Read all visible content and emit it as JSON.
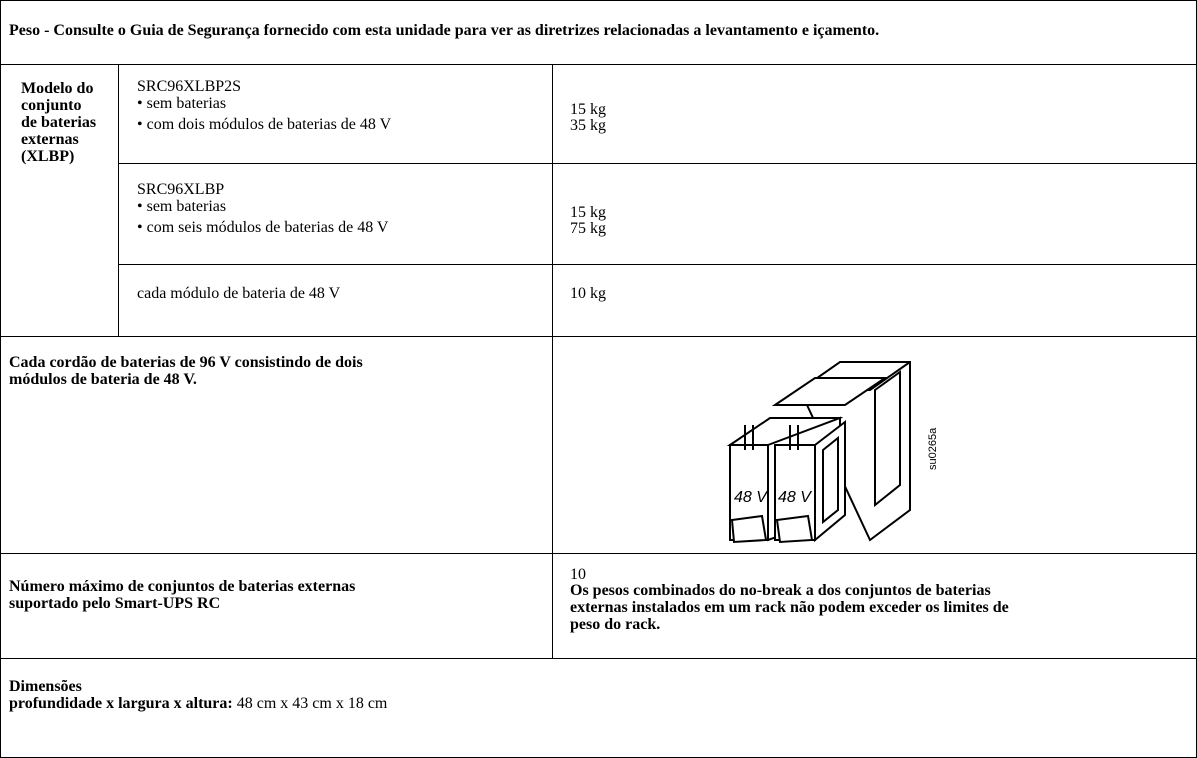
{
  "header": {
    "title": "Peso - Consulte o Guia de Segurança fornecido com esta unidade para ver as diretrizes relacionadas a levantamento e içamento."
  },
  "xlbp": {
    "label_lines": [
      "Modelo do",
      "conjunto",
      "de baterias",
      "externas",
      "(XLBP)"
    ],
    "models": [
      {
        "model": "SRC96XLBP2S",
        "items": [
          "• sem baterias",
          "• com dois módulos de baterias de 48 V"
        ],
        "weights": [
          "15 kg",
          "35 kg"
        ]
      },
      {
        "model": "SRC96XLBP",
        "items": [
          "• sem baterias",
          "• com seis módulos de baterias de 48 V"
        ],
        "weights": [
          "15 kg",
          "75 kg"
        ]
      }
    ],
    "module": {
      "label": "cada módulo de bateria de 48 V",
      "weight": "10 kg"
    }
  },
  "string": {
    "label_lines": [
      "Cada cordão de baterias de 96 V consistindo de dois",
      "módulos de bateria de 48 V."
    ],
    "figure": {
      "labels": [
        "48 V",
        "48 V"
      ],
      "code": "su0265a"
    }
  },
  "max": {
    "label_lines": [
      "Número máximo de conjuntos de baterias externas",
      "suportado pelo Smart-UPS RC"
    ],
    "value": "10",
    "note_lines": [
      "Os pesos combinados do no-break a dos conjuntos de baterias",
      "externas instalados em um rack não podem exceder os limites de",
      "peso do rack."
    ]
  },
  "dimensions": {
    "title": "Dimensões",
    "label": "profundidade x largura x altura:",
    "value": "48 cm x 43 cm x 18 cm"
  }
}
